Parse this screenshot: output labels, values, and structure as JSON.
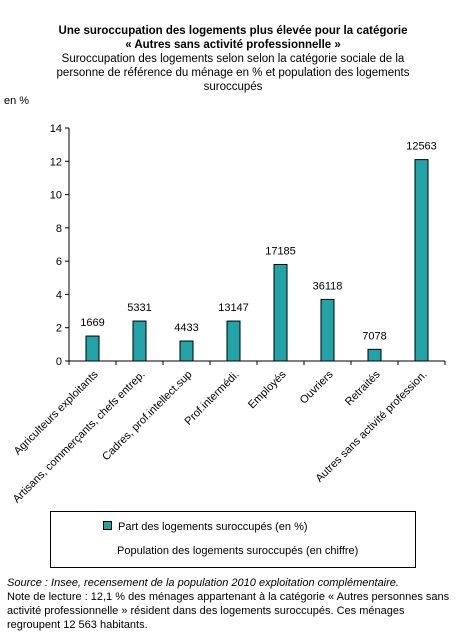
{
  "title_lines": [
    "Une suroccupation des logements plus élevée pour la catégorie",
    "« Autres sans activité professionnelle »"
  ],
  "subtitle_lines": [
    "Suroccupation des logements selon selon la catégorie sociale de la",
    "personne de référence du ménage en % et population des logements",
    "suroccupés"
  ],
  "colors": {
    "bar": "#22a3a8",
    "bar_border": "#000000"
  },
  "chart_data": {
    "type": "bar",
    "title": "Une suroccupation des logements plus élevée pour la catégorie « Autres sans activité professionnelle »",
    "ylabel": "en %",
    "ylim": [
      0,
      14
    ],
    "yticks": [
      0,
      2,
      4,
      6,
      8,
      10,
      12,
      14
    ],
    "categories": [
      "Agriculteurs exploitants",
      "Artisans, commerçants, chefs entrep.",
      "Cadres, prof.intellect.sup",
      "Prof.intermédi.",
      "Employés",
      "Ouvriers",
      "Retraités",
      "Autres sans activité profession."
    ],
    "series": [
      {
        "name": "Part des logements suroccupés (en %)",
        "values": [
          1.5,
          2.4,
          1.2,
          2.4,
          5.8,
          3.7,
          0.7,
          12.1
        ]
      },
      {
        "name": "Population des logements suroccupés (en chiffre)",
        "values": [
          1669,
          5331,
          4433,
          13147,
          17185,
          36118,
          7078,
          12563
        ]
      }
    ],
    "legend": "bottom",
    "grid": false
  },
  "footer": {
    "source": "Source : Insee, recensement de la population 2010 exploitation complémentaire.",
    "note_lines": [
      " Note de lecture : 12,1 % des ménages appartenant à la catégorie « Autres personnes sans",
      "activité professionnelle » résident dans des logements suroccupés. Ces ménages",
      "regroupent 12 563 habitants."
    ]
  }
}
